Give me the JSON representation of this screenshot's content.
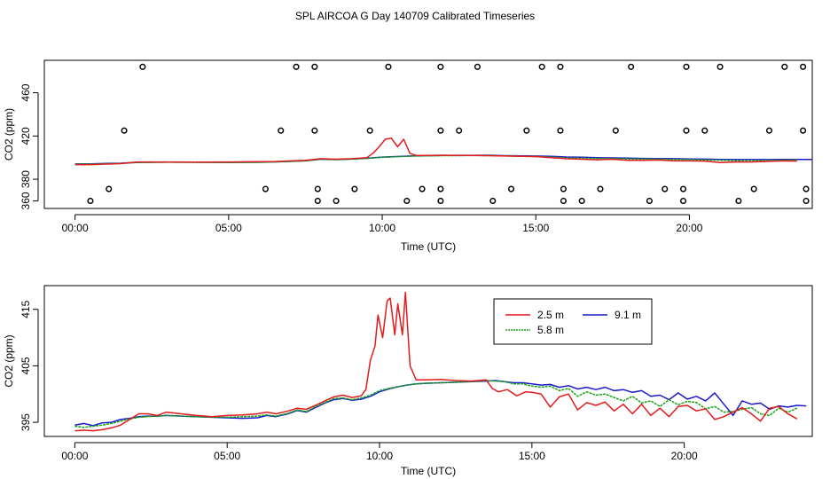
{
  "page_title": "SPL AIRCOA G  Day 140709  Calibrated Timeseries",
  "colors": {
    "red": "#e41a1c",
    "green": "#1aa31a",
    "blue": "#1a1acc",
    "axis": "#000000"
  },
  "chart_data": [
    {
      "type": "line",
      "title": "",
      "xlabel": "Time (UTC)",
      "ylabel": "CO2 (ppm)",
      "xlim": [
        -1,
        24
      ],
      "ylim": [
        353,
        490
      ],
      "x_ticks": [
        0,
        5,
        10,
        15,
        20
      ],
      "x_tick_labels": [
        "00:00",
        "05:00",
        "10:00",
        "15:00",
        "20:00"
      ],
      "y_ticks": [
        360,
        380,
        420,
        460
      ],
      "y_tick_labels": [
        "360",
        "380",
        "420",
        "460"
      ],
      "series": [
        {
          "name": "2.5 m",
          "color": "#e41a1c",
          "x": [
            0,
            0.5,
            1,
            1.5,
            2,
            2.5,
            3,
            4,
            5,
            6,
            6.5,
            7,
            7.5,
            8,
            8.5,
            9,
            9.5,
            9.7,
            9.9,
            10.1,
            10.3,
            10.5,
            10.7,
            10.9,
            11.1,
            11.5,
            12,
            13,
            14,
            15,
            15.5,
            16,
            16.5,
            17,
            17.5,
            18,
            18.5,
            19,
            19.5,
            20,
            20.5,
            21,
            21.5,
            22,
            22.5,
            23,
            23.5
          ],
          "y": [
            393.5,
            393.5,
            394,
            394.5,
            396,
            396,
            396,
            395.8,
            396,
            396.2,
            396.4,
            397,
            397.5,
            399,
            398.5,
            399,
            400,
            404,
            410,
            417,
            418,
            410,
            417,
            404,
            402,
            402,
            402.2,
            402,
            401.5,
            401,
            400,
            399,
            398.5,
            398,
            398.5,
            397.5,
            397.5,
            397.8,
            397,
            397,
            396.8,
            395.5,
            396,
            396,
            396.5,
            397,
            396.8
          ]
        },
        {
          "name": "5.8 m",
          "color": "#1aa31a",
          "x": [
            0,
            0.5,
            1,
            1.5,
            2,
            2.5,
            3,
            4,
            5,
            6,
            6.5,
            7,
            7.5,
            8,
            8.5,
            9,
            9.5,
            10,
            11,
            12,
            13,
            13.5,
            14,
            15,
            15.5,
            16,
            16.5,
            17,
            17.5,
            18,
            18.5,
            19,
            19.5,
            20,
            20.5,
            21,
            21.5,
            22,
            22.5,
            23,
            23.5
          ],
          "y": [
            394,
            394,
            394.2,
            394.5,
            395.5,
            395.6,
            395.7,
            395.6,
            395.5,
            395.6,
            396,
            396.5,
            397,
            398.5,
            398.2,
            398.6,
            399.3,
            400.3,
            401.4,
            401.8,
            401.9,
            402,
            401.6,
            401,
            400.5,
            399.6,
            399.4,
            399.3,
            399.2,
            398.8,
            398.6,
            398.6,
            398.2,
            398.2,
            397.8,
            397.6,
            397.2,
            397.3,
            397.4,
            397.6,
            397.8
          ]
        },
        {
          "name": "9.1 m",
          "color": "#1a1acc",
          "x": [
            0,
            0.5,
            1,
            1.5,
            2,
            2.5,
            3,
            4,
            5,
            6,
            6.5,
            7,
            7.5,
            8,
            8.5,
            9,
            9.5,
            10,
            11,
            12,
            13,
            13.5,
            14,
            15,
            15.5,
            16,
            16.5,
            17,
            17.5,
            18,
            18.5,
            19,
            19.5,
            20,
            20.5,
            21,
            21.5,
            22,
            22.5,
            23,
            23.5,
            24
          ],
          "y": [
            394.3,
            394.3,
            394.6,
            394.8,
            395.6,
            395.7,
            395.8,
            395.7,
            395.6,
            395.8,
            396.1,
            396.6,
            397.1,
            398.5,
            398.2,
            398.7,
            399.4,
            400.5,
            401.6,
            402,
            402.1,
            402.2,
            401.8,
            401.5,
            401.2,
            400.6,
            400.3,
            400,
            399.8,
            399.6,
            399.3,
            399.2,
            399,
            398.8,
            398.6,
            398.4,
            398.2,
            398.2,
            398.2,
            398.3,
            398.3,
            398.3
          ]
        }
      ],
      "points": [
        {
          "x": 0.5,
          "y": 360
        },
        {
          "x": 1.1,
          "y": 371
        },
        {
          "x": 1.6,
          "y": 425
        },
        {
          "x": 2.2,
          "y": 484
        },
        {
          "x": 6.2,
          "y": 371
        },
        {
          "x": 6.7,
          "y": 425
        },
        {
          "x": 7.2,
          "y": 484
        },
        {
          "x": 7.8,
          "y": 484
        },
        {
          "x": 7.8,
          "y": 425
        },
        {
          "x": 7.9,
          "y": 371
        },
        {
          "x": 7.9,
          "y": 360
        },
        {
          "x": 8.5,
          "y": 360
        },
        {
          "x": 9.1,
          "y": 371
        },
        {
          "x": 9.6,
          "y": 425
        },
        {
          "x": 10.2,
          "y": 484
        },
        {
          "x": 10.8,
          "y": 360
        },
        {
          "x": 11.3,
          "y": 371
        },
        {
          "x": 11.9,
          "y": 484
        },
        {
          "x": 11.9,
          "y": 425
        },
        {
          "x": 11.9,
          "y": 371
        },
        {
          "x": 11.9,
          "y": 360
        },
        {
          "x": 12.5,
          "y": 425
        },
        {
          "x": 13.1,
          "y": 484
        },
        {
          "x": 13.6,
          "y": 360
        },
        {
          "x": 14.2,
          "y": 371
        },
        {
          "x": 14.7,
          "y": 425
        },
        {
          "x": 15.2,
          "y": 484
        },
        {
          "x": 15.8,
          "y": 484
        },
        {
          "x": 15.8,
          "y": 425
        },
        {
          "x": 15.9,
          "y": 371
        },
        {
          "x": 15.9,
          "y": 360
        },
        {
          "x": 16.5,
          "y": 360
        },
        {
          "x": 17.1,
          "y": 371
        },
        {
          "x": 17.6,
          "y": 425
        },
        {
          "x": 18.1,
          "y": 484
        },
        {
          "x": 18.7,
          "y": 360
        },
        {
          "x": 19.2,
          "y": 371
        },
        {
          "x": 19.8,
          "y": 371
        },
        {
          "x": 19.8,
          "y": 360
        },
        {
          "x": 19.9,
          "y": 484
        },
        {
          "x": 19.9,
          "y": 425
        },
        {
          "x": 20.5,
          "y": 425
        },
        {
          "x": 21,
          "y": 484
        },
        {
          "x": 21.6,
          "y": 360
        },
        {
          "x": 22.1,
          "y": 371
        },
        {
          "x": 22.6,
          "y": 425
        },
        {
          "x": 23.1,
          "y": 484
        },
        {
          "x": 23.7,
          "y": 484
        },
        {
          "x": 23.7,
          "y": 425
        },
        {
          "x": 23.8,
          "y": 371
        },
        {
          "x": 23.8,
          "y": 360
        }
      ]
    },
    {
      "type": "line",
      "title": "",
      "xlabel": "Time (UTC)",
      "ylabel": "CO2 (ppm)",
      "xlim": [
        -1,
        24.2
      ],
      "ylim": [
        392.5,
        419.2
      ],
      "x_ticks": [
        0,
        5,
        10,
        15,
        20
      ],
      "x_tick_labels": [
        "00:00",
        "05:00",
        "10:00",
        "15:00",
        "20:00"
      ],
      "y_ticks": [
        395,
        405,
        415
      ],
      "y_tick_labels": [
        "395",
        "405",
        "415"
      ],
      "legend": {
        "position": "top-right",
        "entries": [
          {
            "label": "2.5 m",
            "color": "#e41a1c"
          },
          {
            "label": "9.1 m",
            "color": "#1a1acc"
          },
          {
            "label": "5.8 m",
            "color": "#1aa31a"
          }
        ]
      },
      "series": [
        {
          "name": "2.5 m",
          "color": "#e41a1c",
          "x": [
            0,
            0.3,
            0.6,
            0.9,
            1.2,
            1.5,
            1.8,
            2.1,
            2.4,
            2.7,
            3,
            3.5,
            4,
            4.5,
            5,
            5.5,
            6,
            6.3,
            6.6,
            7,
            7.3,
            7.6,
            7.9,
            8.2,
            8.5,
            8.8,
            9.1,
            9.4,
            9.55,
            9.7,
            9.85,
            9.95,
            10.1,
            10.25,
            10.35,
            10.5,
            10.6,
            10.75,
            10.85,
            11,
            11.2,
            11.5,
            12,
            12.5,
            13,
            13.5,
            13.7,
            13.9,
            14.2,
            14.5,
            14.8,
            15,
            15.3,
            15.6,
            15.9,
            16.2,
            16.5,
            16.8,
            17.1,
            17.4,
            17.7,
            18,
            18.3,
            18.6,
            18.9,
            19.2,
            19.5,
            19.8,
            20.1,
            20.4,
            20.7,
            21,
            21.3,
            21.6,
            21.9,
            22.2,
            22.5,
            22.8,
            23.1,
            23.4,
            23.7
          ],
          "y": [
            393.5,
            393.6,
            393.5,
            393.7,
            394,
            394.5,
            395.5,
            396.5,
            396.5,
            396.2,
            396.8,
            396.5,
            396.2,
            396.0,
            396.2,
            396.3,
            396.5,
            396.8,
            396.5,
            397,
            397.5,
            397.3,
            398,
            398.8,
            399.5,
            399.8,
            399.4,
            399.7,
            400.8,
            406,
            408.5,
            414,
            410,
            416.5,
            417,
            410.5,
            416,
            410.5,
            418,
            405,
            402.5,
            402.5,
            402.6,
            402.4,
            402.3,
            402.5,
            401,
            400.4,
            400.8,
            399.7,
            400.4,
            400.3,
            400,
            397.7,
            399.5,
            400,
            397.2,
            398.5,
            398,
            398.6,
            397,
            398.2,
            396.5,
            398.2,
            396.2,
            397.5,
            396,
            397.8,
            398,
            397,
            397.4,
            395.5,
            396,
            396.8,
            397.6,
            396.5,
            395.2,
            397.5,
            397.8,
            396.5,
            395.6
          ]
        },
        {
          "name": "5.8 m",
          "color": "#1aa31a",
          "x": [
            0,
            0.3,
            0.6,
            0.9,
            1.2,
            1.5,
            1.8,
            2.1,
            2.4,
            2.7,
            3,
            3.5,
            4,
            4.5,
            5,
            5.5,
            6,
            6.3,
            6.6,
            7,
            7.3,
            7.6,
            7.9,
            8.2,
            8.5,
            8.8,
            9.1,
            9.4,
            9.7,
            10,
            10.3,
            10.6,
            10.9,
            11.2,
            11.5,
            12,
            12.5,
            13,
            13.5,
            13.8,
            14.1,
            14.4,
            14.7,
            15,
            15.3,
            15.6,
            15.9,
            16.2,
            16.5,
            16.8,
            17.1,
            17.4,
            17.7,
            18,
            18.3,
            18.6,
            18.9,
            19.2,
            19.5,
            19.8,
            20.1,
            20.4,
            20.7,
            21,
            21.3,
            21.6,
            21.9,
            22.2,
            22.5,
            22.8,
            23.1,
            23.4,
            23.7
          ],
          "y": [
            394.3,
            394.1,
            394.3,
            394.5,
            394.8,
            395.2,
            395.6,
            395.9,
            396,
            396.1,
            396.2,
            396.1,
            396,
            395.9,
            395.9,
            396.0,
            396.1,
            396.3,
            396.1,
            396.6,
            397.2,
            396.9,
            397.8,
            398.5,
            399.2,
            399.3,
            399.0,
            399.3,
            399.8,
            400.6,
            401.0,
            401.3,
            401.6,
            401.8,
            401.9,
            402,
            402.1,
            402.2,
            402.4,
            402.3,
            402.2,
            401.8,
            401.8,
            401.4,
            401.2,
            401.4,
            400.6,
            401,
            399.6,
            400.4,
            399.8,
            400,
            399.4,
            398.8,
            399.6,
            398.4,
            398.8,
            397.8,
            399,
            398.1,
            398.7,
            398.5,
            397.4,
            397.8,
            396.8,
            396.9,
            397.3,
            397.6,
            396.5,
            396.2,
            397.5,
            396.8,
            397.5
          ]
        },
        {
          "name": "9.1 m",
          "color": "#1a1acc",
          "x": [
            0,
            0.3,
            0.6,
            0.9,
            1.2,
            1.5,
            1.8,
            2.1,
            2.4,
            2.7,
            3,
            3.5,
            4,
            4.5,
            5,
            5.5,
            6,
            6.3,
            6.6,
            7,
            7.3,
            7.6,
            7.9,
            8.2,
            8.5,
            8.8,
            9.1,
            9.4,
            9.7,
            10,
            10.3,
            10.6,
            10.9,
            11.2,
            11.5,
            12,
            12.5,
            13,
            13.5,
            13.8,
            14.1,
            14.4,
            14.7,
            15,
            15.3,
            15.6,
            15.9,
            16.2,
            16.5,
            16.8,
            17.1,
            17.4,
            17.7,
            18,
            18.3,
            18.6,
            18.9,
            19.2,
            19.5,
            19.8,
            20.1,
            20.4,
            20.7,
            21,
            21.3,
            21.6,
            21.9,
            22.2,
            22.5,
            22.8,
            23.1,
            23.4,
            23.7,
            24
          ],
          "y": [
            394.5,
            394.8,
            394.4,
            394.9,
            395,
            395.5,
            395.7,
            396,
            396.1,
            396.1,
            396.2,
            396.1,
            396,
            395.9,
            395.8,
            395.7,
            395.8,
            396.2,
            396,
            396.5,
            397.1,
            396.8,
            397.6,
            398.4,
            399,
            399.2,
            398.9,
            399.1,
            399.6,
            400.4,
            400.9,
            401.3,
            401.6,
            401.8,
            401.9,
            402.0,
            402.1,
            402.2,
            402.3,
            402.4,
            402.2,
            402,
            402,
            401.8,
            401.6,
            401.7,
            401.2,
            401.5,
            400.9,
            401.2,
            400.8,
            401.2,
            400.6,
            400.8,
            400.3,
            400.6,
            399.6,
            399.8,
            399,
            400.2,
            399.1,
            399.6,
            398.8,
            400.2,
            398.2,
            396.2,
            398.8,
            398.2,
            398.4,
            397.3,
            397.9,
            397.7,
            398.0,
            397.9
          ]
        }
      ]
    }
  ]
}
